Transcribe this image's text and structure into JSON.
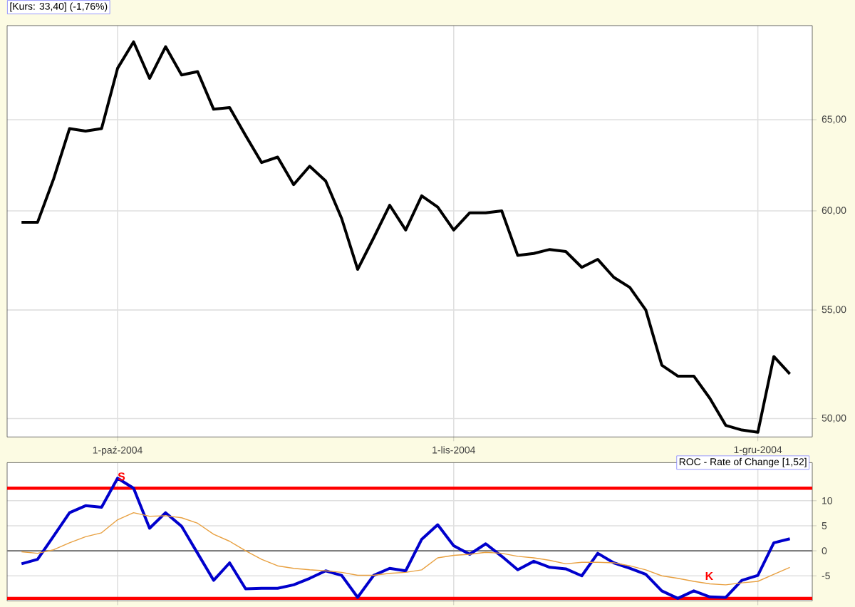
{
  "chart_data": [
    {
      "type": "line",
      "title": "[Kurs: 33,40] (-1,76%)",
      "log": "y",
      "grid": true,
      "color": "#000000",
      "categories": [
        null,
        null,
        null,
        null,
        null,
        null,
        "1-paź-2004",
        null,
        null,
        null,
        null,
        null,
        null,
        null,
        null,
        null,
        null,
        null,
        null,
        null,
        null,
        null,
        null,
        null,
        null,
        null,
        null,
        "1-lis-2004",
        null,
        null,
        null,
        null,
        null,
        null,
        null,
        null,
        null,
        null,
        null,
        null,
        null,
        null,
        null,
        null,
        null,
        null,
        "1-gru-2004",
        null,
        null
      ],
      "values": [
        59.4,
        59.4,
        61.7,
        64.5,
        64.35,
        64.5,
        68.0,
        69.6,
        67.4,
        69.3,
        67.6,
        67.8,
        65.6,
        65.7,
        64.1,
        62.6,
        62.9,
        61.4,
        62.4,
        61.6,
        59.6,
        57.0,
        58.6,
        60.3,
        59.0,
        60.8,
        60.2,
        59.0,
        59.9,
        59.9,
        60.0,
        57.7,
        57.8,
        58.0,
        57.9,
        57.1,
        57.5,
        56.6,
        56.1,
        55.0,
        52.4,
        51.9,
        51.9,
        50.9,
        49.7,
        49.5,
        49.4,
        52.8,
        52.0
      ],
      "ylim": [
        49.2,
        70.6
      ],
      "yticks": [
        {
          "value": 50,
          "label": "50,00"
        },
        {
          "value": 55,
          "label": "55,00"
        },
        {
          "value": 60,
          "label": "60,00"
        },
        {
          "value": 65,
          "label": "65,00"
        }
      ]
    },
    {
      "type": "line",
      "title": "ROC - Rate of Change [1,52]",
      "grid": true,
      "tick_labels": "y",
      "categories": [
        null,
        null,
        null,
        null,
        null,
        null,
        null,
        null,
        null,
        null,
        null,
        null,
        null,
        null,
        null,
        null,
        null,
        null,
        null,
        null,
        null,
        null,
        null,
        null,
        null,
        null,
        null,
        null,
        null,
        null,
        null,
        null,
        null,
        null,
        null,
        null,
        null,
        null,
        null,
        null,
        null,
        null,
        null,
        null,
        null,
        null,
        null,
        null,
        null
      ],
      "series": [
        {
          "color": "#0000cc",
          "values": [
            -2.6,
            -1.7,
            2.9,
            7.6,
            9.0,
            8.7,
            14.5,
            12.5,
            4.5,
            7.6,
            4.9,
            -0.5,
            -5.9,
            -2.4,
            -7.6,
            -7.5,
            -7.5,
            -6.8,
            -5.5,
            -4.0,
            -4.9,
            -9.3,
            -4.9,
            -3.5,
            -4.0,
            2.3,
            5.2,
            1.0,
            -0.7,
            1.4,
            -1.1,
            -3.8,
            -2.1,
            -3.3,
            -3.6,
            -5.0,
            -0.5,
            -2.4,
            -3.5,
            -4.7,
            -8.0,
            -9.5,
            -8.0,
            -9.2,
            -9.3,
            -5.9,
            -4.9,
            1.6,
            2.4
          ]
        },
        {
          "color": "#e8a040",
          "values": [
            -0.2,
            -0.5,
            0.2,
            1.6,
            2.8,
            3.6,
            6.2,
            7.6,
            6.9,
            7.0,
            6.6,
            5.5,
            3.3,
            1.9,
            0.0,
            -1.7,
            -3.0,
            -3.5,
            -3.8,
            -4.0,
            -4.3,
            -4.9,
            -4.9,
            -4.5,
            -4.3,
            -3.8,
            -1.4,
            -0.9,
            -0.7,
            -0.3,
            -0.5,
            -1.1,
            -1.4,
            -1.9,
            -2.6,
            -2.3,
            -2.3,
            -2.4,
            -3.0,
            -3.8,
            -5.0,
            -5.5,
            -6.1,
            -6.6,
            -6.8,
            -6.4,
            -6.1,
            -4.7,
            -3.3
          ]
        }
      ],
      "ylim": [
        -10,
        17.6
      ],
      "yticks": [
        -5,
        0,
        5,
        10
      ],
      "ref_lines": [
        {
          "axis": "y",
          "value": 12.5,
          "color": "#ff0000"
        },
        {
          "axis": "y",
          "value": -9.5,
          "color": "#ff0000"
        },
        {
          "axis": "y",
          "value": 0,
          "color": "#808080"
        }
      ],
      "annotations": [
        "S",
        "K"
      ]
    }
  ]
}
